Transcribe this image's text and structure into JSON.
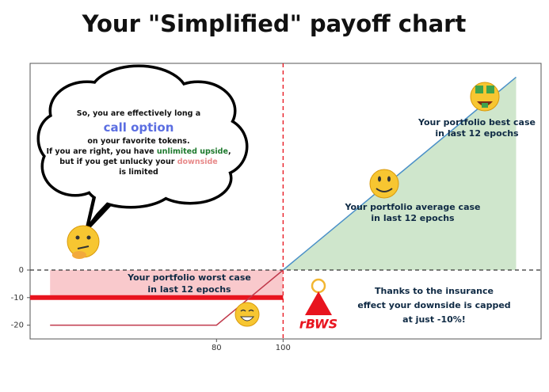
{
  "chart_data": {
    "type": "line",
    "title": "Your \"Simplified\" payoff chart",
    "xlim": [
      24,
      177.5
    ],
    "ylim": [
      -25,
      75
    ],
    "xticks": [
      80,
      100
    ],
    "yticks": [
      0,
      -10,
      -20
    ],
    "series": [
      {
        "color": "#c0394b",
        "x": [
          30,
          80,
          100
        ],
        "values": [
          -20,
          -20,
          0
        ]
      },
      {
        "color": "#4a90c8",
        "x": [
          100,
          170
        ],
        "values": [
          0,
          70
        ]
      }
    ],
    "upside_fill": {
      "color": "#cfe6cc",
      "x": [
        100,
        170
      ],
      "values": [
        0,
        70
      ]
    },
    "downside_band": {
      "color": "#f9c9cc",
      "x": [
        30,
        100
      ],
      "values": [
        0,
        -10
      ]
    },
    "floor": {
      "color": "#e8141e",
      "value": -10
    },
    "bubble": [
      [
        {
          "text": "So, you are effectively long a",
          "color": "#111111"
        }
      ],
      [
        {
          "text": "call option",
          "color": "#5b6ee1"
        }
      ],
      [
        {
          "text": "on your favorite tokens.",
          "color": "#111111"
        }
      ],
      [
        {
          "text": "If you are right, you have ",
          "color": "#111111"
        },
        {
          "text": "unlimited upside",
          "color": "#1e7a2e"
        },
        {
          "text": ",",
          "color": "#111111"
        }
      ],
      [
        {
          "text": "but if you get unlucky your ",
          "color": "#111111"
        },
        {
          "text": "downside",
          "color": "#e88a8a"
        }
      ],
      [
        {
          "text": "is limited",
          "color": "#111111"
        }
      ]
    ],
    "annotations": {
      "best": [
        "Your portfolio best case",
        "in last 12 epochs"
      ],
      "average": [
        "Your portfolio average case",
        "in last 12 epochs"
      ],
      "worst": [
        "Your portfolio worst case",
        "in last 12 epochs"
      ],
      "insurance": [
        "Thanks to the insurance",
        "effect your downside is capped",
        "at just -10%!"
      ]
    },
    "logo": "rBWS"
  }
}
